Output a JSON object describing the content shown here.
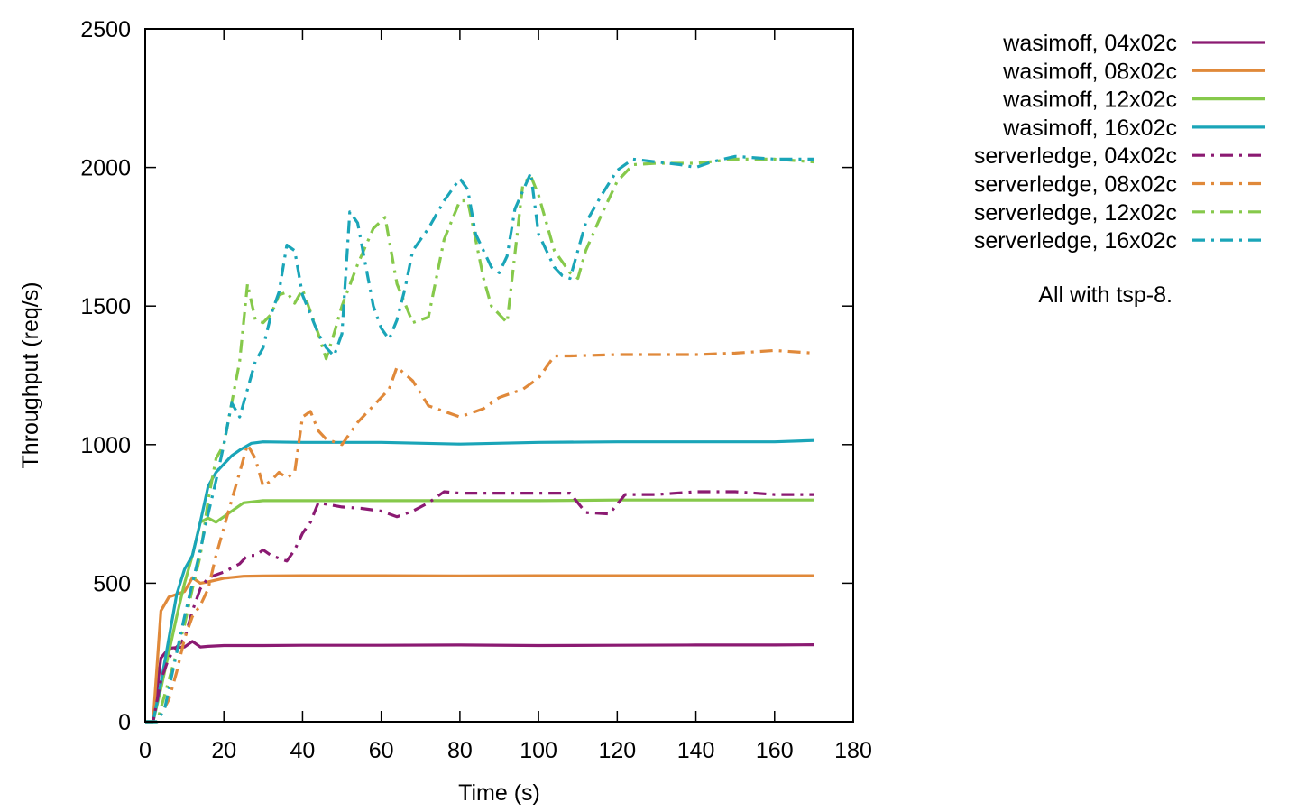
{
  "chart_data": {
    "type": "line",
    "title": "",
    "xlabel": "Time (s)",
    "ylabel": "Throughput (req/s)",
    "xlim": [
      0,
      180
    ],
    "ylim": [
      0,
      2500
    ],
    "xticks": [
      0,
      20,
      40,
      60,
      80,
      100,
      120,
      140,
      160,
      180
    ],
    "yticks": [
      0,
      500,
      1000,
      1500,
      2000,
      2500
    ],
    "grid": false,
    "legend_position": "right",
    "note": "All with tsp-8.",
    "series": [
      {
        "name": "wasimoff, 04x02c",
        "color": "#8b1a72",
        "style": "solid",
        "points": [
          [
            0,
            0
          ],
          [
            2,
            0
          ],
          [
            4,
            230
          ],
          [
            6,
            265
          ],
          [
            8,
            268
          ],
          [
            10,
            270
          ],
          [
            12,
            290
          ],
          [
            14,
            270
          ],
          [
            16,
            272
          ],
          [
            20,
            275
          ],
          [
            30,
            275
          ],
          [
            40,
            276
          ],
          [
            60,
            276
          ],
          [
            80,
            277
          ],
          [
            100,
            275
          ],
          [
            120,
            276
          ],
          [
            140,
            277
          ],
          [
            160,
            277
          ],
          [
            170,
            278
          ]
        ]
      },
      {
        "name": "wasimoff, 08x02c",
        "color": "#e0893a",
        "style": "solid",
        "points": [
          [
            0,
            0
          ],
          [
            2,
            0
          ],
          [
            4,
            400
          ],
          [
            6,
            450
          ],
          [
            8,
            460
          ],
          [
            10,
            470
          ],
          [
            12,
            520
          ],
          [
            14,
            500
          ],
          [
            16,
            505
          ],
          [
            20,
            518
          ],
          [
            25,
            525
          ],
          [
            30,
            526
          ],
          [
            40,
            527
          ],
          [
            60,
            527
          ],
          [
            80,
            526
          ],
          [
            100,
            527
          ],
          [
            120,
            527
          ],
          [
            140,
            527
          ],
          [
            160,
            527
          ],
          [
            170,
            527
          ]
        ]
      },
      {
        "name": "wasimoff, 12x02c",
        "color": "#86c94b",
        "style": "solid",
        "points": [
          [
            0,
            0
          ],
          [
            2,
            0
          ],
          [
            4,
            120
          ],
          [
            6,
            250
          ],
          [
            8,
            380
          ],
          [
            10,
            500
          ],
          [
            12,
            600
          ],
          [
            14,
            720
          ],
          [
            16,
            735
          ],
          [
            18,
            720
          ],
          [
            20,
            740
          ],
          [
            22,
            760
          ],
          [
            25,
            790
          ],
          [
            30,
            798
          ],
          [
            40,
            798
          ],
          [
            60,
            798
          ],
          [
            80,
            798
          ],
          [
            100,
            798
          ],
          [
            120,
            800
          ],
          [
            140,
            800
          ],
          [
            160,
            800
          ],
          [
            170,
            800
          ]
        ]
      },
      {
        "name": "wasimoff, 16x02c",
        "color": "#1aa5b8",
        "style": "solid",
        "points": [
          [
            0,
            0
          ],
          [
            2,
            0
          ],
          [
            4,
            140
          ],
          [
            6,
            300
          ],
          [
            8,
            460
          ],
          [
            10,
            550
          ],
          [
            12,
            600
          ],
          [
            14,
            720
          ],
          [
            16,
            850
          ],
          [
            18,
            900
          ],
          [
            20,
            930
          ],
          [
            22,
            960
          ],
          [
            24,
            980
          ],
          [
            27,
            1005
          ],
          [
            30,
            1010
          ],
          [
            40,
            1008
          ],
          [
            60,
            1008
          ],
          [
            80,
            1002
          ],
          [
            100,
            1008
          ],
          [
            120,
            1010
          ],
          [
            140,
            1010
          ],
          [
            160,
            1010
          ],
          [
            170,
            1015
          ]
        ]
      },
      {
        "name": "serverledge, 04x02c",
        "color": "#8b1a72",
        "style": "dashdot",
        "points": [
          [
            0,
            0
          ],
          [
            2,
            0
          ],
          [
            4,
            150
          ],
          [
            6,
            230
          ],
          [
            8,
            270
          ],
          [
            10,
            300
          ],
          [
            12,
            400
          ],
          [
            14,
            480
          ],
          [
            16,
            520
          ],
          [
            20,
            540
          ],
          [
            24,
            570
          ],
          [
            26,
            600
          ],
          [
            28,
            600
          ],
          [
            30,
            620
          ],
          [
            32,
            600
          ],
          [
            34,
            590
          ],
          [
            36,
            580
          ],
          [
            38,
            620
          ],
          [
            40,
            680
          ],
          [
            42,
            720
          ],
          [
            44,
            790
          ],
          [
            46,
            785
          ],
          [
            50,
            775
          ],
          [
            55,
            770
          ],
          [
            60,
            760
          ],
          [
            64,
            740
          ],
          [
            68,
            760
          ],
          [
            72,
            790
          ],
          [
            76,
            830
          ],
          [
            80,
            825
          ],
          [
            90,
            825
          ],
          [
            100,
            825
          ],
          [
            108,
            825
          ],
          [
            112,
            755
          ],
          [
            118,
            750
          ],
          [
            122,
            820
          ],
          [
            130,
            820
          ],
          [
            140,
            830
          ],
          [
            150,
            830
          ],
          [
            160,
            820
          ],
          [
            170,
            820
          ]
        ]
      },
      {
        "name": "serverledge, 08x02c",
        "color": "#e0893a",
        "style": "dashdot",
        "points": [
          [
            0,
            0
          ],
          [
            3,
            0
          ],
          [
            6,
            80
          ],
          [
            8,
            180
          ],
          [
            10,
            300
          ],
          [
            12,
            380
          ],
          [
            14,
            420
          ],
          [
            16,
            480
          ],
          [
            18,
            600
          ],
          [
            20,
            700
          ],
          [
            22,
            800
          ],
          [
            24,
            900
          ],
          [
            26,
            1000
          ],
          [
            28,
            950
          ],
          [
            30,
            850
          ],
          [
            32,
            870
          ],
          [
            34,
            900
          ],
          [
            36,
            880
          ],
          [
            38,
            900
          ],
          [
            40,
            1100
          ],
          [
            42,
            1120
          ],
          [
            44,
            1050
          ],
          [
            46,
            1020
          ],
          [
            50,
            1000
          ],
          [
            54,
            1080
          ],
          [
            58,
            1140
          ],
          [
            62,
            1200
          ],
          [
            64,
            1280
          ],
          [
            68,
            1230
          ],
          [
            72,
            1140
          ],
          [
            76,
            1120
          ],
          [
            80,
            1100
          ],
          [
            86,
            1130
          ],
          [
            90,
            1170
          ],
          [
            96,
            1200
          ],
          [
            100,
            1240
          ],
          [
            104,
            1320
          ],
          [
            108,
            1320
          ],
          [
            120,
            1325
          ],
          [
            140,
            1325
          ],
          [
            150,
            1330
          ],
          [
            160,
            1340
          ],
          [
            170,
            1330
          ]
        ]
      },
      {
        "name": "serverledge, 12x02c",
        "color": "#86c94b",
        "style": "dashdot",
        "points": [
          [
            0,
            0
          ],
          [
            3,
            0
          ],
          [
            6,
            150
          ],
          [
            8,
            250
          ],
          [
            10,
            350
          ],
          [
            12,
            480
          ],
          [
            14,
            600
          ],
          [
            16,
            800
          ],
          [
            18,
            950
          ],
          [
            20,
            1000
          ],
          [
            22,
            1150
          ],
          [
            24,
            1300
          ],
          [
            26,
            1580
          ],
          [
            28,
            1450
          ],
          [
            30,
            1440
          ],
          [
            32,
            1470
          ],
          [
            34,
            1540
          ],
          [
            36,
            1550
          ],
          [
            38,
            1510
          ],
          [
            40,
            1560
          ],
          [
            44,
            1400
          ],
          [
            46,
            1310
          ],
          [
            48,
            1400
          ],
          [
            50,
            1500
          ],
          [
            54,
            1650
          ],
          [
            58,
            1780
          ],
          [
            61,
            1820
          ],
          [
            64,
            1580
          ],
          [
            68,
            1440
          ],
          [
            72,
            1460
          ],
          [
            76,
            1740
          ],
          [
            80,
            1880
          ],
          [
            82,
            1880
          ],
          [
            86,
            1600
          ],
          [
            88,
            1500
          ],
          [
            92,
            1440
          ],
          [
            96,
            1940
          ],
          [
            98,
            1970
          ],
          [
            100,
            1900
          ],
          [
            104,
            1700
          ],
          [
            108,
            1620
          ],
          [
            110,
            1600
          ],
          [
            112,
            1700
          ],
          [
            116,
            1830
          ],
          [
            120,
            1950
          ],
          [
            124,
            2010
          ],
          [
            130,
            2015
          ],
          [
            140,
            2015
          ],
          [
            150,
            2030
          ],
          [
            160,
            2030
          ],
          [
            170,
            2020
          ]
        ]
      },
      {
        "name": "serverledge, 16x02c",
        "color": "#1aa5b8",
        "style": "dashdot",
        "points": [
          [
            0,
            0
          ],
          [
            3,
            0
          ],
          [
            5,
            50
          ],
          [
            8,
            250
          ],
          [
            10,
            380
          ],
          [
            12,
            500
          ],
          [
            14,
            620
          ],
          [
            16,
            750
          ],
          [
            18,
            870
          ],
          [
            20,
            1000
          ],
          [
            22,
            1150
          ],
          [
            24,
            1100
          ],
          [
            26,
            1200
          ],
          [
            28,
            1300
          ],
          [
            30,
            1350
          ],
          [
            32,
            1470
          ],
          [
            34,
            1550
          ],
          [
            36,
            1720
          ],
          [
            38,
            1700
          ],
          [
            40,
            1540
          ],
          [
            42,
            1470
          ],
          [
            44,
            1400
          ],
          [
            46,
            1350
          ],
          [
            48,
            1320
          ],
          [
            50,
            1400
          ],
          [
            52,
            1840
          ],
          [
            54,
            1800
          ],
          [
            56,
            1650
          ],
          [
            58,
            1500
          ],
          [
            60,
            1420
          ],
          [
            62,
            1380
          ],
          [
            64,
            1450
          ],
          [
            66,
            1560
          ],
          [
            68,
            1700
          ],
          [
            72,
            1780
          ],
          [
            76,
            1880
          ],
          [
            80,
            1960
          ],
          [
            82,
            1920
          ],
          [
            84,
            1760
          ],
          [
            88,
            1640
          ],
          [
            90,
            1620
          ],
          [
            92,
            1680
          ],
          [
            94,
            1850
          ],
          [
            98,
            1980
          ],
          [
            100,
            1760
          ],
          [
            104,
            1640
          ],
          [
            106,
            1610
          ],
          [
            108,
            1600
          ],
          [
            112,
            1800
          ],
          [
            116,
            1900
          ],
          [
            120,
            1990
          ],
          [
            124,
            2030
          ],
          [
            130,
            2020
          ],
          [
            136,
            2010
          ],
          [
            140,
            2000
          ],
          [
            144,
            2020
          ],
          [
            150,
            2040
          ],
          [
            160,
            2030
          ],
          [
            170,
            2030
          ]
        ]
      }
    ]
  }
}
